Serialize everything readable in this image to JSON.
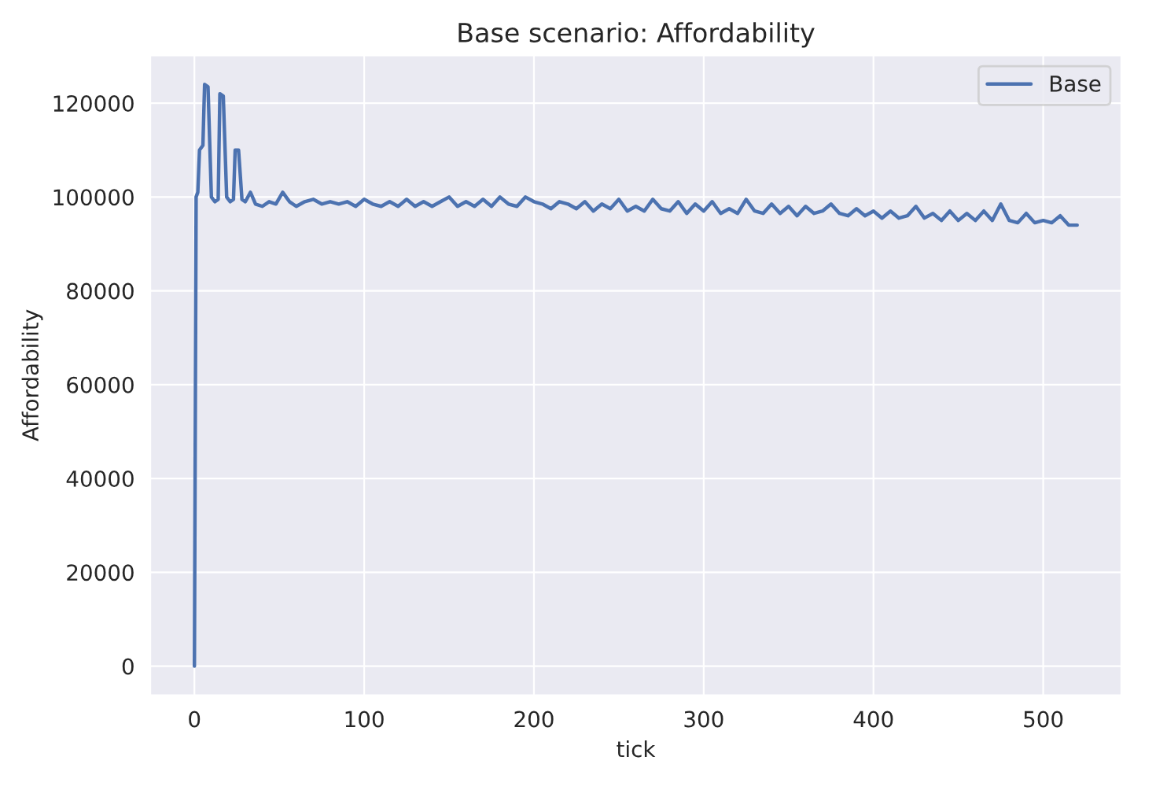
{
  "chart_data": {
    "type": "line",
    "title": "Base scenario: Affordability",
    "xlabel": "tick",
    "ylabel": "Affordability",
    "series": [
      {
        "name": "Base",
        "color": "#4c72b0",
        "x": [
          0,
          1,
          2,
          3,
          5,
          6,
          8,
          10,
          12,
          14,
          15,
          17,
          19,
          21,
          23,
          24,
          26,
          28,
          30,
          33,
          36,
          40,
          44,
          48,
          52,
          56,
          60,
          65,
          70,
          75,
          80,
          85,
          90,
          95,
          100,
          105,
          110,
          115,
          120,
          125,
          130,
          135,
          140,
          145,
          150,
          155,
          160,
          165,
          170,
          175,
          180,
          185,
          190,
          195,
          200,
          205,
          210,
          215,
          220,
          225,
          230,
          235,
          240,
          245,
          250,
          255,
          260,
          265,
          270,
          275,
          280,
          285,
          290,
          295,
          300,
          305,
          310,
          315,
          320,
          325,
          330,
          335,
          340,
          345,
          350,
          355,
          360,
          365,
          370,
          375,
          380,
          385,
          390,
          395,
          400,
          405,
          410,
          415,
          420,
          425,
          430,
          435,
          440,
          445,
          450,
          455,
          460,
          465,
          470,
          475,
          480,
          485,
          490,
          495,
          500,
          505,
          510,
          515,
          520
        ],
        "values": [
          0,
          100000,
          101000,
          110000,
          111000,
          124000,
          123500,
          100000,
          99000,
          99500,
          122000,
          121500,
          100000,
          99000,
          99500,
          110000,
          110000,
          99500,
          99000,
          101000,
          98500,
          98000,
          99000,
          98500,
          101000,
          99000,
          98000,
          99000,
          99500,
          98500,
          99000,
          98500,
          99000,
          98000,
          99500,
          98500,
          98000,
          99000,
          98000,
          99500,
          98000,
          99000,
          98000,
          99000,
          100000,
          98000,
          99000,
          98000,
          99500,
          98000,
          100000,
          98500,
          98000,
          100000,
          99000,
          98500,
          97500,
          99000,
          98500,
          97500,
          99000,
          97000,
          98500,
          97500,
          99500,
          97000,
          98000,
          97000,
          99500,
          97500,
          97000,
          99000,
          96500,
          98500,
          97000,
          99000,
          96500,
          97500,
          96500,
          99500,
          97000,
          96500,
          98500,
          96500,
          98000,
          96000,
          98000,
          96500,
          97000,
          98500,
          96500,
          96000,
          97500,
          96000,
          97000,
          95500,
          97000,
          95500,
          96000,
          98000,
          95500,
          96500,
          95000,
          97000,
          95000,
          96500,
          95000,
          97000,
          95000,
          98500,
          95000,
          94500,
          96500,
          94500,
          95000,
          94500,
          96000,
          94000,
          94000
        ]
      }
    ],
    "xlim": [
      -26,
      546
    ],
    "ylim": [
      -6200,
      130200
    ],
    "xticks": [
      0,
      100,
      200,
      300,
      400,
      500
    ],
    "yticks": [
      0,
      20000,
      40000,
      60000,
      80000,
      100000,
      120000
    ],
    "grid": true,
    "legend": "top right",
    "marker": "none",
    "line_style": "solid"
  }
}
